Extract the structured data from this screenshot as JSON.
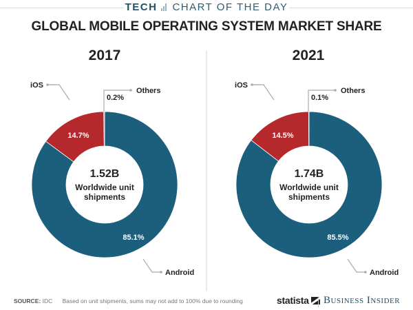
{
  "header": {
    "section": "TECH",
    "series_name": "CHART OF THE DAY",
    "title": "GLOBAL MOBILE OPERATING SYSTEM MARKET SHARE"
  },
  "colors": {
    "android": "#1b5f7d",
    "ios": "#b5282b",
    "others": "#c8c8c8",
    "brand": "#1f4e68"
  },
  "chart_data": [
    {
      "type": "pie",
      "subtype": "donut",
      "title": "2017",
      "center_value": "1.52B",
      "center_label_line1": "Worldwide unit",
      "center_label_line2": "shipments",
      "slices": [
        {
          "name": "Android",
          "value": 85.1,
          "label": "85.1%"
        },
        {
          "name": "iOS",
          "value": 14.7,
          "label": "14.7%"
        },
        {
          "name": "Others",
          "value": 0.2,
          "label": "0.2%"
        }
      ]
    },
    {
      "type": "pie",
      "subtype": "donut",
      "title": "2021",
      "center_value": "1.74B",
      "center_label_line1": "Worldwide unit",
      "center_label_line2": "shipments",
      "slices": [
        {
          "name": "Android",
          "value": 85.5,
          "label": "85.5%"
        },
        {
          "name": "iOS",
          "value": 14.5,
          "label": "14.5%"
        },
        {
          "name": "Others",
          "value": 0.1,
          "label": "0.1%"
        }
      ]
    }
  ],
  "footer": {
    "source_label": "SOURCE:",
    "source_value": "IDC",
    "note": "Based on unit shipments, sums may not add to 100% due to rounding",
    "logo_statista": "statista",
    "logo_publisher": "Business Insider"
  }
}
